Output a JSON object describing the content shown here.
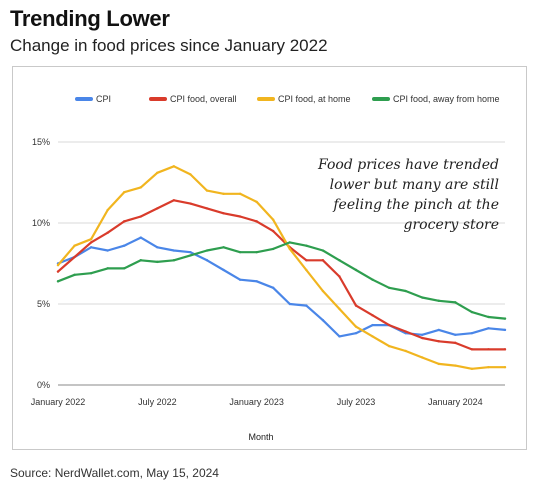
{
  "header": {
    "title": "Trending Lower",
    "subtitle": "Change in food prices since January 2022"
  },
  "footer": {
    "source": "Source: NerdWallet.com, May 15, 2024"
  },
  "chart_data": {
    "type": "line",
    "xlabel": "Month",
    "ylabel": "",
    "ylim": [
      0,
      15
    ],
    "y_ticks": [
      "0%",
      "5%",
      "10%",
      "15%"
    ],
    "x_tick_labels": [
      "January 2022",
      "July 2022",
      "January 2023",
      "July 2023",
      "January 2024"
    ],
    "grid": "horizontal",
    "legend_position": "top",
    "annotation": [
      "Food prices have trended",
      "lower but many are still",
      "feeling the pinch at the",
      "grocery store"
    ],
    "x": [
      "2022-01",
      "2022-02",
      "2022-03",
      "2022-04",
      "2022-05",
      "2022-06",
      "2022-07",
      "2022-08",
      "2022-09",
      "2022-10",
      "2022-11",
      "2022-12",
      "2023-01",
      "2023-02",
      "2023-03",
      "2023-04",
      "2023-05",
      "2023-06",
      "2023-07",
      "2023-08",
      "2023-09",
      "2023-10",
      "2023-11",
      "2023-12",
      "2024-01",
      "2024-02",
      "2024-03",
      "2024-04"
    ],
    "series": [
      {
        "name": "CPI",
        "color": "#4a86e8",
        "values": [
          7.5,
          7.9,
          8.5,
          8.3,
          8.6,
          9.1,
          8.5,
          8.3,
          8.2,
          7.7,
          7.1,
          6.5,
          6.4,
          6.0,
          5.0,
          4.9,
          4.0,
          3.0,
          3.2,
          3.7,
          3.7,
          3.2,
          3.1,
          3.4,
          3.1,
          3.2,
          3.5,
          3.4
        ]
      },
      {
        "name": "CPI food, overall",
        "color": "#d93b2b",
        "values": [
          7.0,
          7.9,
          8.8,
          9.4,
          10.1,
          10.4,
          10.9,
          11.4,
          11.2,
          10.9,
          10.6,
          10.4,
          10.1,
          9.5,
          8.5,
          7.7,
          7.7,
          6.7,
          4.9,
          4.3,
          3.7,
          3.3,
          2.9,
          2.7,
          2.6,
          2.2,
          2.2,
          2.2
        ]
      },
      {
        "name": "CPI food, at home",
        "color": "#f1b51f",
        "values": [
          7.4,
          8.6,
          9.0,
          10.8,
          11.9,
          12.2,
          13.1,
          13.5,
          13.0,
          12.0,
          11.8,
          11.8,
          11.3,
          10.2,
          8.4,
          7.1,
          5.8,
          4.7,
          3.6,
          3.0,
          2.4,
          2.1,
          1.7,
          1.3,
          1.2,
          1.0,
          1.1,
          1.1
        ]
      },
      {
        "name": "CPI food, away from home",
        "color": "#2e9e4f",
        "values": [
          6.4,
          6.8,
          6.9,
          7.2,
          7.2,
          7.7,
          7.6,
          7.7,
          8.0,
          8.3,
          8.5,
          8.2,
          8.2,
          8.4,
          8.8,
          8.6,
          8.3,
          7.7,
          7.1,
          6.5,
          6.0,
          5.8,
          5.4,
          5.2,
          5.1,
          4.5,
          4.2,
          4.1
        ]
      }
    ]
  }
}
